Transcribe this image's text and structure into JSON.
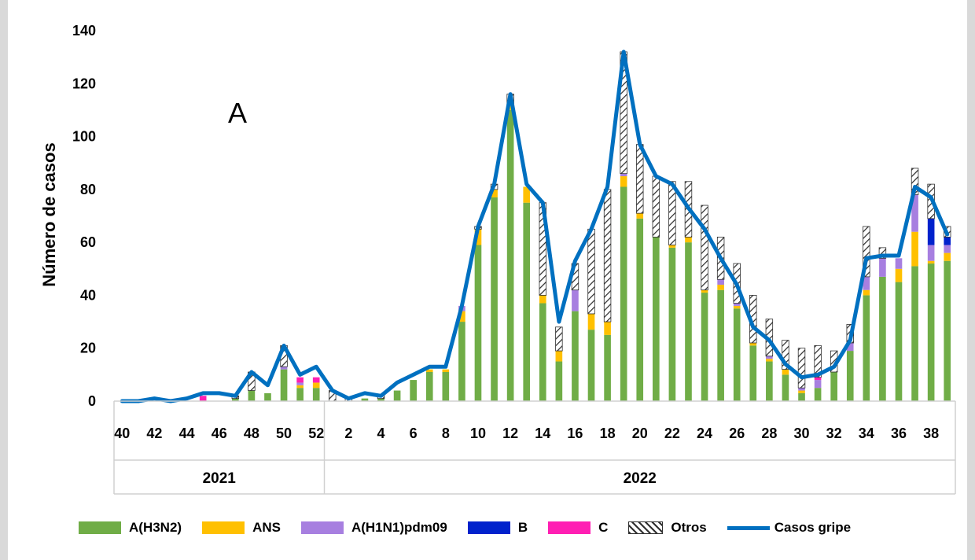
{
  "chart_data": {
    "type": "bar",
    "stacked": true,
    "panel_label": "A",
    "title": "",
    "xlabel": "",
    "ylabel": "Número de casos",
    "ylim": [
      0,
      140
    ],
    "yticks": [
      0,
      20,
      40,
      60,
      80,
      100,
      120,
      140
    ],
    "grid": false,
    "legend_position": "bottom",
    "years": [
      {
        "label": "2021",
        "weeks": [
          40,
          41,
          42,
          43,
          44,
          45,
          46,
          47,
          48,
          49,
          50,
          51,
          52
        ]
      },
      {
        "label": "2022",
        "weeks": [
          1,
          2,
          3,
          4,
          5,
          6,
          7,
          8,
          9,
          10,
          11,
          12,
          13,
          14,
          15,
          16,
          17,
          18,
          19,
          20,
          21,
          22,
          23,
          24,
          25,
          26,
          27,
          28,
          29,
          30,
          31,
          32,
          33,
          34,
          35,
          36,
          37,
          38,
          39
        ]
      }
    ],
    "tick_labels": [
      "40",
      "42",
      "44",
      "46",
      "48",
      "50",
      "52",
      "2",
      "4",
      "6",
      "8",
      "10",
      "12",
      "14",
      "16",
      "18",
      "20",
      "22",
      "24",
      "26",
      "28",
      "30",
      "32",
      "34",
      "36",
      "38"
    ],
    "series": [
      {
        "name": "A(H3N2)",
        "color": "#70ad47",
        "pattern": "solid",
        "values": [
          0,
          0,
          0,
          0,
          0,
          0,
          0,
          1,
          4,
          3,
          12,
          5,
          5,
          0,
          0,
          1,
          1,
          4,
          8,
          11,
          11,
          30,
          59,
          77,
          110,
          75,
          37,
          15,
          34,
          27,
          25,
          81,
          69,
          62,
          58,
          60,
          41,
          42,
          35,
          21,
          15,
          10,
          3,
          5,
          11,
          19,
          40,
          47,
          45,
          51,
          52,
          53
        ]
      },
      {
        "name": "ANS",
        "color": "#ffc000",
        "pattern": "solid",
        "values": [
          0,
          0,
          0,
          0,
          0,
          0,
          0,
          0,
          0,
          0,
          0,
          1,
          2,
          0,
          0,
          0,
          0,
          0,
          0,
          1,
          1,
          4,
          6,
          3,
          2,
          6,
          3,
          4,
          0,
          6,
          5,
          4,
          2,
          0,
          1,
          2,
          1,
          2,
          1,
          1,
          1,
          2,
          1,
          0,
          0,
          0,
          2,
          0,
          5,
          13,
          1,
          3
        ]
      },
      {
        "name": "A(H1N1)pdm09",
        "color": "#a77fe0",
        "pattern": "solid",
        "values": [
          0,
          0,
          0,
          0,
          0,
          0,
          0,
          0,
          0,
          0,
          1,
          1,
          0,
          0,
          0,
          0,
          0,
          0,
          0,
          0,
          0,
          2,
          0,
          0,
          0,
          0,
          0,
          0,
          8,
          0,
          0,
          1,
          0,
          0,
          0,
          0,
          0,
          2,
          1,
          0,
          1,
          0,
          1,
          3,
          0,
          3,
          5,
          7,
          4,
          14,
          6,
          3
        ]
      },
      {
        "name": "B",
        "color": "#0022cc",
        "pattern": "solid",
        "values": [
          0,
          0,
          0,
          0,
          0,
          0,
          0,
          0,
          0,
          0,
          0,
          0,
          0,
          0,
          0,
          0,
          0,
          0,
          0,
          0,
          0,
          0,
          0,
          0,
          0,
          0,
          0,
          0,
          0,
          0,
          0,
          0,
          0,
          0,
          0,
          0,
          0,
          0,
          0,
          0,
          0,
          0,
          0,
          0,
          0,
          0,
          0,
          0,
          0,
          0,
          10,
          3
        ]
      },
      {
        "name": "C",
        "color": "#ff1fb3",
        "pattern": "solid",
        "values": [
          0,
          0,
          0,
          0,
          0,
          2,
          0,
          0,
          0,
          0,
          0,
          2,
          2,
          0,
          0,
          0,
          0,
          0,
          0,
          0,
          0,
          0,
          0,
          0,
          0,
          0,
          0,
          0,
          0,
          0,
          0,
          0,
          0,
          0,
          0,
          0,
          0,
          0,
          0,
          0,
          0,
          0,
          0,
          1,
          0,
          0,
          0,
          0,
          0,
          0,
          0,
          0
        ]
      },
      {
        "name": "Otros",
        "color": "#404040",
        "pattern": "hatch",
        "values": [
          0,
          0,
          0,
          0,
          0,
          0,
          0,
          1,
          7,
          0,
          8,
          0,
          0,
          4,
          1,
          0,
          1,
          0,
          0,
          0,
          0,
          0,
          1,
          2,
          4,
          0,
          35,
          9,
          10,
          32,
          50,
          46,
          26,
          23,
          24,
          21,
          32,
          16,
          15,
          18,
          14,
          11,
          15,
          12,
          8,
          7,
          19,
          4,
          0,
          10,
          13,
          4
        ]
      }
    ],
    "line_series": {
      "name": "Casos gripe",
      "color": "#0070c0",
      "values": [
        0,
        0,
        1,
        0,
        1,
        3,
        3,
        2,
        11,
        6,
        21,
        10,
        13,
        4,
        1,
        3,
        2,
        7,
        10,
        13,
        13,
        36,
        66,
        82,
        116,
        82,
        75,
        30,
        53,
        65,
        81,
        132,
        97,
        85,
        82,
        73,
        65,
        54,
        44,
        28,
        23,
        14,
        9,
        10,
        13,
        23,
        54,
        55,
        55,
        81,
        77,
        63
      ]
    }
  }
}
